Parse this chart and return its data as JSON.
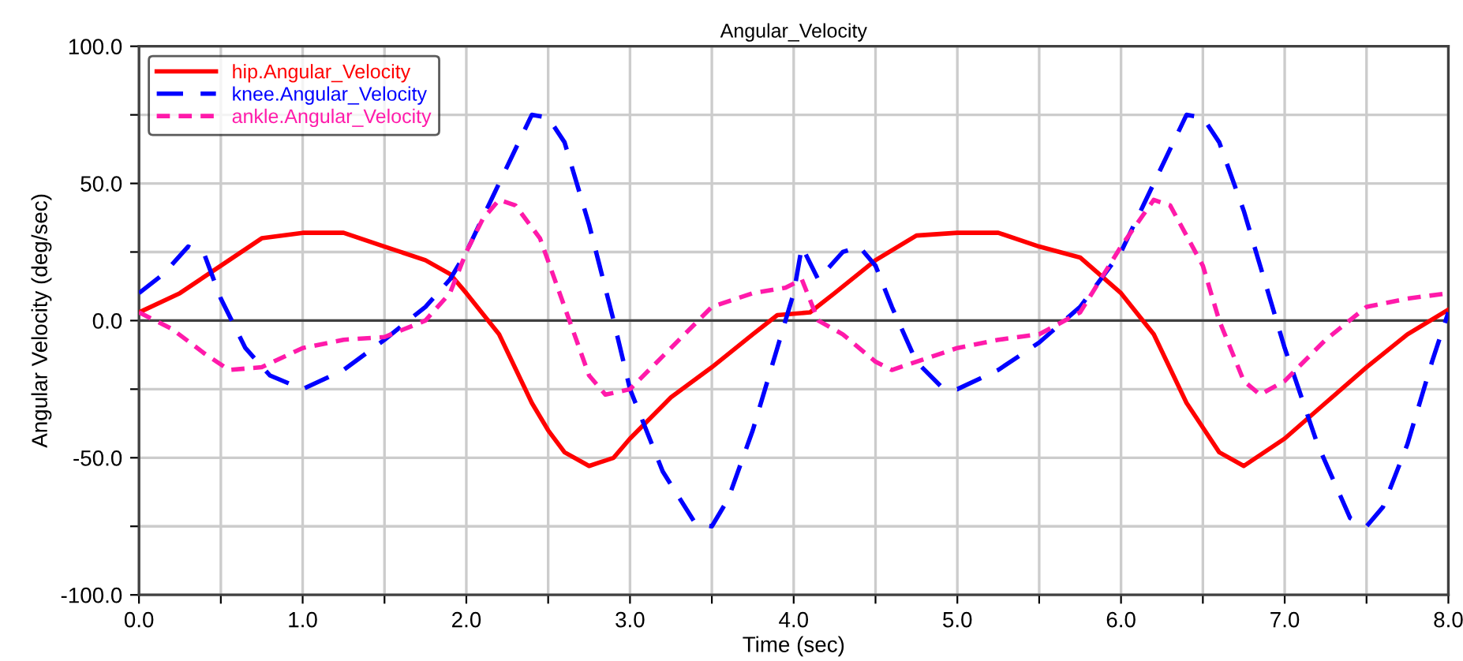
{
  "chart_data": {
    "type": "line",
    "title": "Angular_Velocity",
    "xlabel": "Time (sec)",
    "ylabel": "Angular Velocity (deg/sec)",
    "xlim": [
      0,
      8
    ],
    "ylim": [
      -100,
      100
    ],
    "xticks": [
      {
        "value": 0,
        "label": "0.0"
      },
      {
        "value": 0.5,
        "label": null
      },
      {
        "value": 1,
        "label": "1.0"
      },
      {
        "value": 1.5,
        "label": null
      },
      {
        "value": 2,
        "label": "2.0"
      },
      {
        "value": 2.5,
        "label": null
      },
      {
        "value": 3,
        "label": "3.0"
      },
      {
        "value": 3.5,
        "label": null
      },
      {
        "value": 4,
        "label": "4.0"
      },
      {
        "value": 4.5,
        "label": null
      },
      {
        "value": 5,
        "label": "5.0"
      },
      {
        "value": 5.5,
        "label": null
      },
      {
        "value": 6,
        "label": "6.0"
      },
      {
        "value": 6.5,
        "label": null
      },
      {
        "value": 7,
        "label": "7.0"
      },
      {
        "value": 7.5,
        "label": null
      },
      {
        "value": 8,
        "label": "8.0"
      }
    ],
    "yticks": [
      {
        "value": -100,
        "label": "-100.0"
      },
      {
        "value": -75,
        "label": null
      },
      {
        "value": -50,
        "label": "-50.0"
      },
      {
        "value": -25,
        "label": null
      },
      {
        "value": 0,
        "label": "0.0"
      },
      {
        "value": 25,
        "label": null
      },
      {
        "value": 50,
        "label": "50.0"
      },
      {
        "value": 75,
        "label": null
      },
      {
        "value": 100,
        "label": "100.0"
      }
    ],
    "ref_lines": [
      {
        "axis": "y",
        "value": 0,
        "label": null,
        "color": "#404040"
      }
    ],
    "grid": true,
    "legend": "top left",
    "marker": "none",
    "series": [
      {
        "name": "hip.Angular_Velocity",
        "color": "#ff0000",
        "line_style": "solid",
        "x": [
          0,
          0.25,
          0.5,
          0.75,
          1.0,
          1.25,
          1.5,
          1.75,
          1.9,
          2.0,
          2.2,
          2.4,
          2.5,
          2.6,
          2.75,
          2.9,
          3.0,
          3.25,
          3.5,
          3.75,
          3.9,
          4.1,
          4.25,
          4.5,
          4.75,
          5.0,
          5.25,
          5.5,
          5.75,
          6.0,
          6.2,
          6.4,
          6.6,
          6.75,
          7.0,
          7.25,
          7.5,
          7.75,
          8.0
        ],
        "values": [
          3,
          10,
          20,
          30,
          32,
          32,
          27,
          22,
          17,
          10,
          -5,
          -30,
          -40,
          -48,
          -53,
          -50,
          -43,
          -28,
          -17,
          -5,
          2,
          3,
          10,
          22,
          31,
          32,
          32,
          27,
          23,
          10,
          -5,
          -30,
          -48,
          -53,
          -43,
          -30,
          -17,
          -5,
          4
        ]
      },
      {
        "name": "knee.Angular_Velocity",
        "color": "#0000ff",
        "line_style": "dashed",
        "x": [
          0,
          0.15,
          0.3,
          0.4,
          0.5,
          0.65,
          0.8,
          1.0,
          1.25,
          1.5,
          1.75,
          1.9,
          2.0,
          2.2,
          2.4,
          2.5,
          2.6,
          2.75,
          2.9,
          3.0,
          3.2,
          3.4,
          3.5,
          3.6,
          3.75,
          3.9,
          4.0,
          4.05,
          4.15,
          4.3,
          4.4,
          4.5,
          4.6,
          4.75,
          4.9,
          5.0,
          5.25,
          5.5,
          5.75,
          6.0,
          6.2,
          6.4,
          6.5,
          6.6,
          6.75,
          7.0,
          7.2,
          7.4,
          7.5,
          7.6,
          7.75,
          7.9,
          8.0
        ],
        "values": [
          10,
          17,
          27,
          24,
          8,
          -10,
          -20,
          -25,
          -18,
          -7,
          5,
          15,
          25,
          50,
          75,
          74,
          65,
          35,
          0,
          -25,
          -55,
          -74,
          -75,
          -65,
          -40,
          -10,
          10,
          27,
          15,
          25,
          27,
          20,
          5,
          -15,
          -24,
          -25,
          -18,
          -8,
          5,
          25,
          50,
          75,
          74,
          65,
          40,
          -10,
          -45,
          -72,
          -75,
          -68,
          -45,
          -15,
          3
        ]
      },
      {
        "name": "ankle.Angular_Velocity",
        "color": "#ff1aaa",
        "line_style": "dotted",
        "x": [
          0,
          0.2,
          0.4,
          0.55,
          0.75,
          1.0,
          1.25,
          1.5,
          1.75,
          1.9,
          2.0,
          2.1,
          2.2,
          2.3,
          2.45,
          2.6,
          2.75,
          2.85,
          3.0,
          3.25,
          3.5,
          3.75,
          3.95,
          4.05,
          4.15,
          4.3,
          4.5,
          4.6,
          4.75,
          5.0,
          5.25,
          5.5,
          5.75,
          6.0,
          6.2,
          6.3,
          6.5,
          6.6,
          6.75,
          6.85,
          7.0,
          7.25,
          7.5,
          7.75,
          8.0
        ],
        "values": [
          3,
          -3,
          -12,
          -18,
          -17,
          -10,
          -7,
          -6,
          0,
          10,
          25,
          37,
          44,
          42,
          30,
          5,
          -20,
          -27,
          -25,
          -10,
          5,
          10,
          12,
          15,
          0,
          -5,
          -15,
          -18,
          -15,
          -10,
          -7,
          -5,
          3,
          27,
          44,
          42,
          20,
          0,
          -22,
          -27,
          -22,
          -7,
          5,
          8,
          10
        ]
      }
    ]
  }
}
